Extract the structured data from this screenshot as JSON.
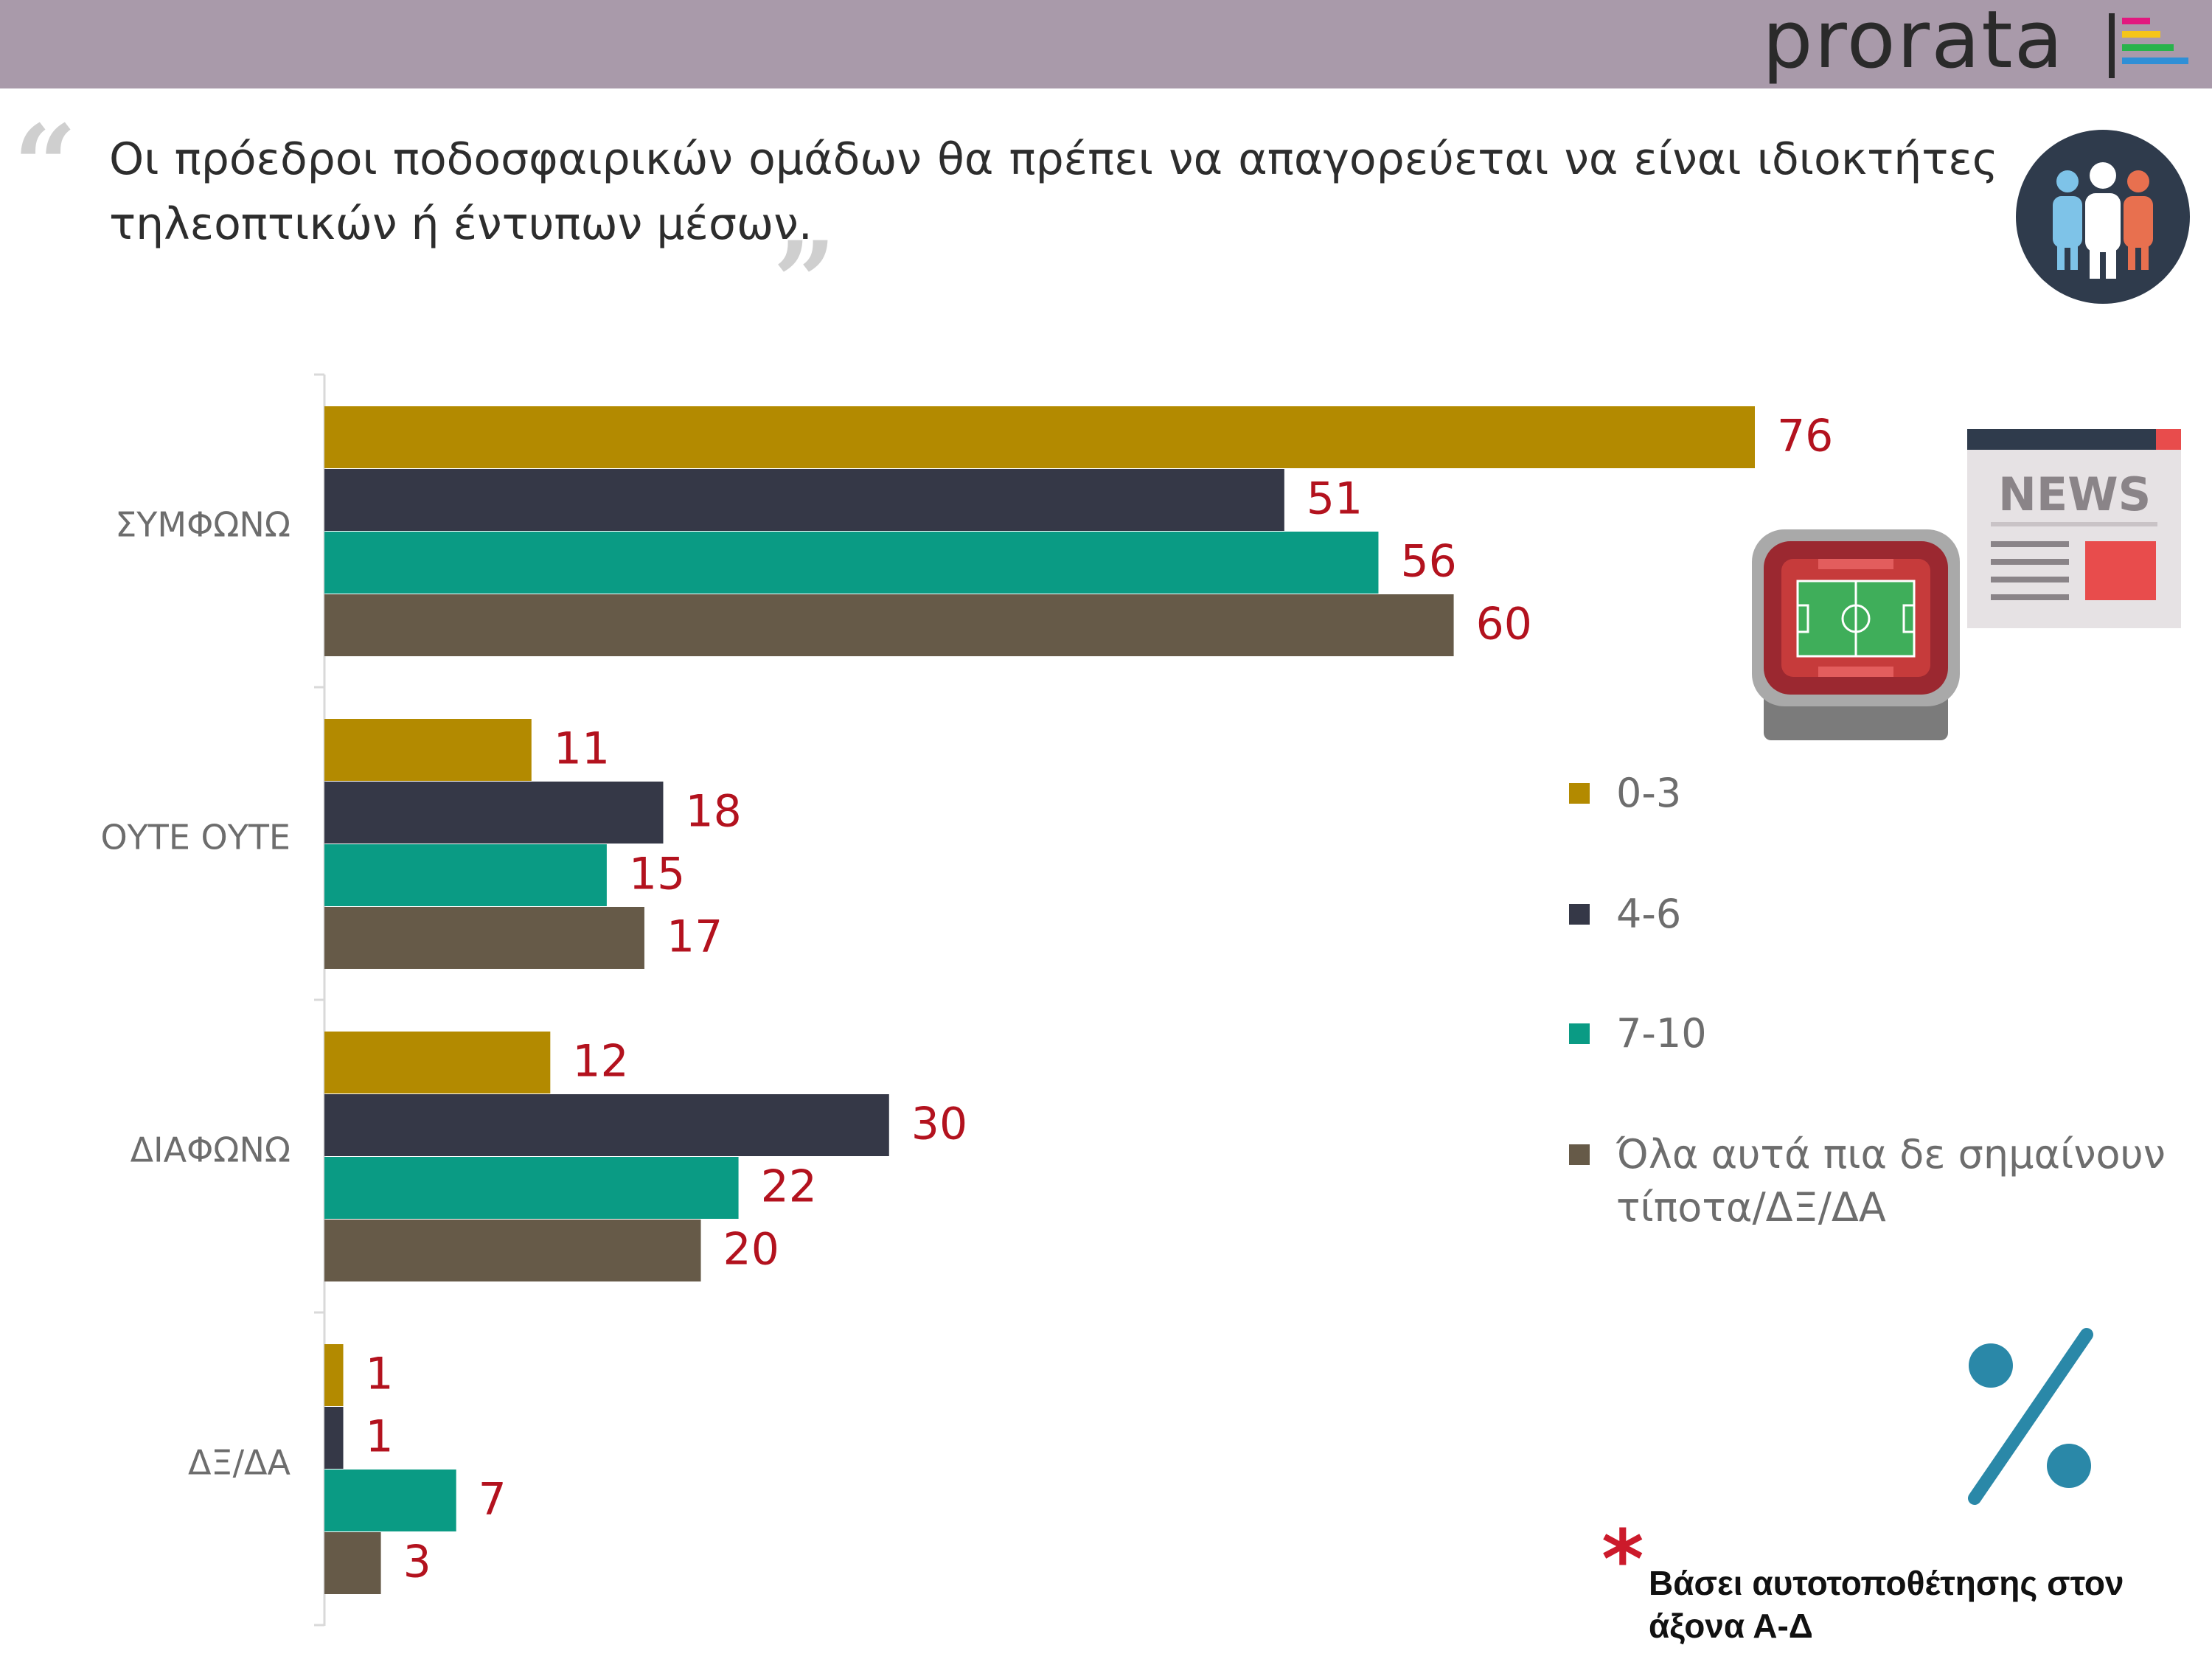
{
  "header": {
    "logo_text": "prorata",
    "logo_colors": [
      "#e2187f",
      "#f5c518",
      "#28b34b",
      "#2f8fd6"
    ]
  },
  "question": {
    "text": "Οι πρόεδροι ποδοσφαιρικών ομάδων θα πρέπει να απαγορεύεται να είναι ιδιοκτήτες τηλεοπτικών ή έντυπων μέσων.",
    "open_quote": "“",
    "close_quote": "”"
  },
  "icons": {
    "people": "people-group-icon",
    "news": "newspaper-icon",
    "stadium": "stadium-icon",
    "percent": "percent-icon"
  },
  "chart_data": {
    "type": "bar",
    "orientation": "horizontal",
    "title": "",
    "xlabel": "",
    "ylabel": "",
    "xlim": [
      0,
      100
    ],
    "grid": false,
    "legend_position": "right",
    "categories": [
      "ΣΥΜΦΩΝΩ",
      "ΟΥΤΕ ΟΥΤΕ",
      "ΔΙΑΦΩΝΩ",
      "ΔΞ/ΔΑ"
    ],
    "series": [
      {
        "name": "0-3",
        "color": "#b38a00",
        "values": [
          76,
          11,
          12,
          1
        ]
      },
      {
        "name": "4-6",
        "color": "#353847",
        "values": [
          51,
          18,
          30,
          1
        ]
      },
      {
        "name": "7-10",
        "color": "#0a9b84",
        "values": [
          56,
          15,
          22,
          7
        ]
      },
      {
        "name": "Όλα αυτά πια δε σημαίνουν τίποτα/ΔΞ/ΔΑ",
        "color": "#665a48",
        "values": [
          60,
          17,
          20,
          3
        ]
      }
    ],
    "value_label_color": "#b3121e"
  },
  "legend": {
    "items": [
      {
        "label": "0-3",
        "color": "#b38a00"
      },
      {
        "label": "4-6",
        "color": "#353847"
      },
      {
        "label": "7-10",
        "color": "#0a9b84"
      },
      {
        "label": "Όλα αυτά πια δε σημαίνουν τίποτα/ΔΞ/ΔΑ",
        "color": "#665a48"
      }
    ]
  },
  "footnote": {
    "star": "*",
    "text": "Βάσει αυτοτοποθέτησης στον άξονα Α-Δ"
  }
}
